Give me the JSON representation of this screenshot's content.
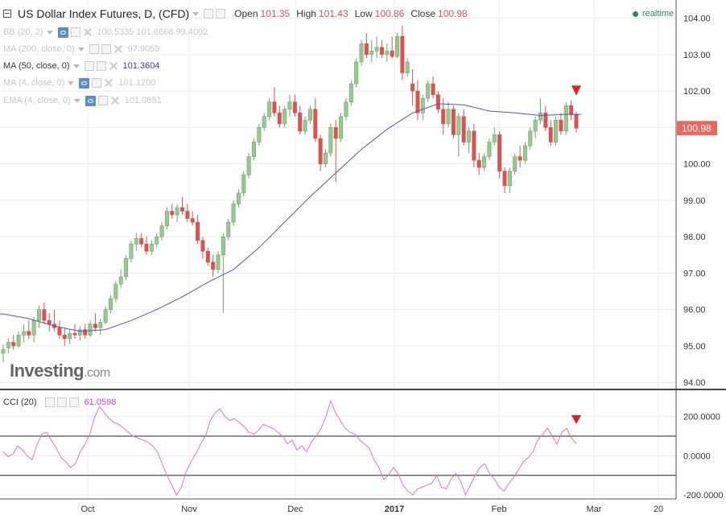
{
  "header": {
    "title": "US Dollar Index Futures, D, (CFD)",
    "ohlc": [
      {
        "label": "Open",
        "value": "101.35"
      },
      {
        "label": "High",
        "value": "101.43"
      },
      {
        "label": "Low",
        "value": "100.86"
      },
      {
        "label": "Close",
        "value": "100.98"
      }
    ],
    "realtime": "realtime"
  },
  "indicators": [
    {
      "name": "BB (20, 2)",
      "values": [
        "100.5335",
        "101.6668",
        "99.4002"
      ],
      "active": false
    },
    {
      "name": "MA (200, close, 0)",
      "values": [
        "97.9059"
      ],
      "active": false
    },
    {
      "name": "MA (50, close, 0)",
      "values": [
        "101.3604"
      ],
      "active": true
    },
    {
      "name": "MA (4, close, 0)",
      "values": [
        "101.1200"
      ],
      "active": false
    },
    {
      "name": "EMA (4, close, 0)",
      "values": [
        "101.0651"
      ],
      "active": false
    }
  ],
  "cci": {
    "name": "CCI (20)",
    "value": "61.0598"
  },
  "logo": {
    "text": "Investing",
    "suffix": ".com"
  },
  "colors": {
    "up": "#6ea66e",
    "up_fill": "#98c98f",
    "down": "#d9534f",
    "ma": "#5555aa",
    "cci": "#e070e0",
    "last_price_bg": "#e8695f"
  },
  "chart_data": [
    {
      "type": "candlestick",
      "title": "US Dollar Index Futures, D, (CFD)",
      "ylim": [
        93.85,
        104.5
      ],
      "y_ticks": [
        "104.00",
        "103.00",
        "102.00",
        "101.00",
        "100.00",
        "99.00",
        "98.00",
        "97.00",
        "96.00",
        "95.00",
        "94.00"
      ],
      "x_ticks": [
        "Oct",
        "Nov",
        "Dec",
        "2017",
        "Feb",
        "Mar",
        "20"
      ],
      "last_price": "100.98",
      "ohlc": [
        [
          94.8,
          95.05,
          94.55,
          94.9
        ],
        [
          94.95,
          95.2,
          94.8,
          95.1
        ],
        [
          95.1,
          95.3,
          94.9,
          95.0
        ],
        [
          95.0,
          95.4,
          94.95,
          95.3
        ],
        [
          95.3,
          95.6,
          95.1,
          95.4
        ],
        [
          95.4,
          95.7,
          95.2,
          95.3
        ],
        [
          95.3,
          95.8,
          95.1,
          95.7
        ],
        [
          95.7,
          96.1,
          95.5,
          96.0
        ],
        [
          96.0,
          96.2,
          95.6,
          95.7
        ],
        [
          95.7,
          95.9,
          95.4,
          95.6
        ],
        [
          95.6,
          96.0,
          95.4,
          95.5
        ],
        [
          95.5,
          95.7,
          95.2,
          95.3
        ],
        [
          95.3,
          95.5,
          95.0,
          95.2
        ],
        [
          95.2,
          95.45,
          95.05,
          95.35
        ],
        [
          95.35,
          95.6,
          95.2,
          95.3
        ],
        [
          95.3,
          95.55,
          95.15,
          95.45
        ],
        [
          95.45,
          95.6,
          95.2,
          95.3
        ],
        [
          95.3,
          95.7,
          95.25,
          95.6
        ],
        [
          95.6,
          95.9,
          95.4,
          95.5
        ],
        [
          95.5,
          95.75,
          95.3,
          95.65
        ],
        [
          95.65,
          96.1,
          95.6,
          96.0
        ],
        [
          96.0,
          96.4,
          95.9,
          96.3
        ],
        [
          96.3,
          96.8,
          96.2,
          96.7
        ],
        [
          96.7,
          97.1,
          96.6,
          96.9
        ],
        [
          96.9,
          97.5,
          96.8,
          97.4
        ],
        [
          97.4,
          97.9,
          97.3,
          97.8
        ],
        [
          97.8,
          98.1,
          97.6,
          97.95
        ],
        [
          97.95,
          98.1,
          97.7,
          97.8
        ],
        [
          97.8,
          98.0,
          97.5,
          97.6
        ],
        [
          97.6,
          97.9,
          97.5,
          97.8
        ],
        [
          97.8,
          98.1,
          97.7,
          98.0
        ],
        [
          98.0,
          98.4,
          97.9,
          98.3
        ],
        [
          98.3,
          98.8,
          98.2,
          98.7
        ],
        [
          98.7,
          98.9,
          98.5,
          98.6
        ],
        [
          98.6,
          98.9,
          98.4,
          98.8
        ],
        [
          98.8,
          99.1,
          98.6,
          98.7
        ],
        [
          98.7,
          98.9,
          98.4,
          98.5
        ],
        [
          98.5,
          98.7,
          98.3,
          98.4
        ],
        [
          98.4,
          98.6,
          97.8,
          97.9
        ],
        [
          97.9,
          98.0,
          97.4,
          97.6
        ],
        [
          97.6,
          97.7,
          97.2,
          97.3
        ],
        [
          97.3,
          97.5,
          96.9,
          97.1
        ],
        [
          97.1,
          97.6,
          97.0,
          97.5
        ],
        [
          97.5,
          98.1,
          95.9,
          98.0
        ],
        [
          98.0,
          98.5,
          97.9,
          98.4
        ],
        [
          98.4,
          99.0,
          98.3,
          98.9
        ],
        [
          98.9,
          99.3,
          98.8,
          99.2
        ],
        [
          99.2,
          99.8,
          99.1,
          99.7
        ],
        [
          99.7,
          100.3,
          99.6,
          100.2
        ],
        [
          100.2,
          100.7,
          100.1,
          100.6
        ],
        [
          100.6,
          101.1,
          100.5,
          101.0
        ],
        [
          101.0,
          101.4,
          100.9,
          101.3
        ],
        [
          101.3,
          101.8,
          101.2,
          101.7
        ],
        [
          101.7,
          102.1,
          101.3,
          101.4
        ],
        [
          101.4,
          101.6,
          101.0,
          101.1
        ],
        [
          101.1,
          101.6,
          101.0,
          101.5
        ],
        [
          101.5,
          101.9,
          101.3,
          101.7
        ],
        [
          101.7,
          101.9,
          101.3,
          101.4
        ],
        [
          101.4,
          101.6,
          100.8,
          100.9
        ],
        [
          100.9,
          101.3,
          100.8,
          101.2
        ],
        [
          101.2,
          101.6,
          101.1,
          101.5
        ],
        [
          101.5,
          101.8,
          100.6,
          100.7
        ],
        [
          100.7,
          100.8,
          99.8,
          100.0
        ],
        [
          100.0,
          100.4,
          99.9,
          100.3
        ],
        [
          100.3,
          101.1,
          100.2,
          101.0
        ],
        [
          101.0,
          101.2,
          99.5,
          100.7
        ],
        [
          100.7,
          101.4,
          100.6,
          101.3
        ],
        [
          101.3,
          101.8,
          101.2,
          101.7
        ],
        [
          101.7,
          102.3,
          101.6,
          102.2
        ],
        [
          102.2,
          102.9,
          102.1,
          102.8
        ],
        [
          102.8,
          103.4,
          102.7,
          103.3
        ],
        [
          103.3,
          103.6,
          102.9,
          103.0
        ],
        [
          103.0,
          103.4,
          102.8,
          103.1
        ],
        [
          103.1,
          103.5,
          102.9,
          103.2
        ],
        [
          103.2,
          103.4,
          102.9,
          103.0
        ],
        [
          103.0,
          103.3,
          102.8,
          103.1
        ],
        [
          103.1,
          103.5,
          102.9,
          102.95
        ],
        [
          102.95,
          103.6,
          102.9,
          103.5
        ],
        [
          103.5,
          103.8,
          102.3,
          102.5
        ],
        [
          102.5,
          102.9,
          102.4,
          102.8
        ],
        [
          102.2,
          102.6,
          101.6,
          102.0
        ],
        [
          102.0,
          102.3,
          101.2,
          101.4
        ],
        [
          101.4,
          101.9,
          101.2,
          101.8
        ],
        [
          101.8,
          102.3,
          101.7,
          102.2
        ],
        [
          102.2,
          102.4,
          101.8,
          101.9
        ],
        [
          101.9,
          102.0,
          101.4,
          101.5
        ],
        [
          101.5,
          101.8,
          100.8,
          101.1
        ],
        [
          101.1,
          101.7,
          101.0,
          101.5
        ],
        [
          101.5,
          101.6,
          100.7,
          100.8
        ],
        [
          100.8,
          101.4,
          100.2,
          101.3
        ],
        [
          101.3,
          101.5,
          100.5,
          100.6
        ],
        [
          100.6,
          101.0,
          100.3,
          100.9
        ],
        [
          100.9,
          101.1,
          99.9,
          100.1
        ],
        [
          100.1,
          100.3,
          99.7,
          99.9
        ],
        [
          99.9,
          100.3,
          99.8,
          100.2
        ],
        [
          100.2,
          100.7,
          100.1,
          100.6
        ],
        [
          100.6,
          101.0,
          100.5,
          100.8
        ],
        [
          100.8,
          100.9,
          99.6,
          99.8
        ],
        [
          99.8,
          99.9,
          99.2,
          99.4
        ],
        [
          99.4,
          99.9,
          99.2,
          99.8
        ],
        [
          99.8,
          100.3,
          99.7,
          100.2
        ],
        [
          100.2,
          100.5,
          99.9,
          100.1
        ],
        [
          100.1,
          100.6,
          100.0,
          100.5
        ],
        [
          100.5,
          101.0,
          100.4,
          100.9
        ],
        [
          100.9,
          101.3,
          100.7,
          101.2
        ],
        [
          101.2,
          101.8,
          101.1,
          101.4
        ],
        [
          101.4,
          101.6,
          100.9,
          101.0
        ],
        [
          101.0,
          101.2,
          100.5,
          100.6
        ],
        [
          100.6,
          101.3,
          100.5,
          101.2
        ],
        [
          101.2,
          101.4,
          100.8,
          100.9
        ],
        [
          100.9,
          101.7,
          100.8,
          101.6
        ],
        [
          101.6,
          101.75,
          101.2,
          101.35
        ],
        [
          101.35,
          101.43,
          100.86,
          100.98
        ]
      ],
      "series": [
        {
          "name": "MA (50, close, 0)",
          "x": [
            0,
            5,
            10,
            15,
            20,
            25,
            30,
            35,
            40,
            45,
            50,
            55,
            60,
            65,
            70,
            75,
            80,
            85,
            90,
            95,
            100,
            105,
            110,
            113
          ],
          "values": [
            95.88,
            95.75,
            95.55,
            95.4,
            95.45,
            95.7,
            96.0,
            96.35,
            96.75,
            97.1,
            97.7,
            98.4,
            99.1,
            99.75,
            100.4,
            100.95,
            101.4,
            101.65,
            101.62,
            101.45,
            101.4,
            101.33,
            101.36,
            101.36
          ]
        }
      ]
    },
    {
      "type": "line",
      "title": "CCI (20)",
      "ylim": [
        -220,
        330
      ],
      "y_ticks": [
        "200.0000",
        "0.0000",
        "-200.0000"
      ],
      "x_ticks": [
        "Oct",
        "Nov",
        "Dec",
        "2017",
        "Feb",
        "Mar",
        "20"
      ],
      "levels": [
        100,
        -100
      ],
      "series": [
        {
          "name": "CCI (20)",
          "values": [
            20,
            -5,
            10,
            50,
            30,
            0,
            -20,
            55,
            110,
            120,
            80,
            40,
            -10,
            -30,
            -60,
            -40,
            20,
            60,
            110,
            200,
            250,
            220,
            190,
            170,
            160,
            140,
            120,
            100,
            90,
            80,
            70,
            50,
            20,
            -40,
            -100,
            -150,
            -200,
            -160,
            -80,
            -30,
            10,
            60,
            100,
            180,
            220,
            240,
            200,
            180,
            190,
            170,
            150,
            120,
            110,
            130,
            160,
            150,
            140,
            120,
            100,
            60,
            80,
            30,
            50,
            20,
            70,
            100,
            140,
            200,
            280,
            220,
            180,
            140,
            120,
            110,
            80,
            60,
            40,
            -20,
            -60,
            -120,
            -100,
            -60,
            -90,
            -150,
            -180,
            -200,
            -170,
            -160,
            -150,
            -140,
            -100,
            -160,
            -170,
            -120,
            -90,
            -130,
            -200,
            -150,
            -100,
            -60,
            -40,
            -90,
            -120,
            -160,
            -180,
            -140,
            -110,
            -70,
            -30,
            -10,
            20,
            80,
            110,
            140,
            100,
            60,
            120,
            140,
            90,
            61.06
          ]
        }
      ]
    }
  ]
}
